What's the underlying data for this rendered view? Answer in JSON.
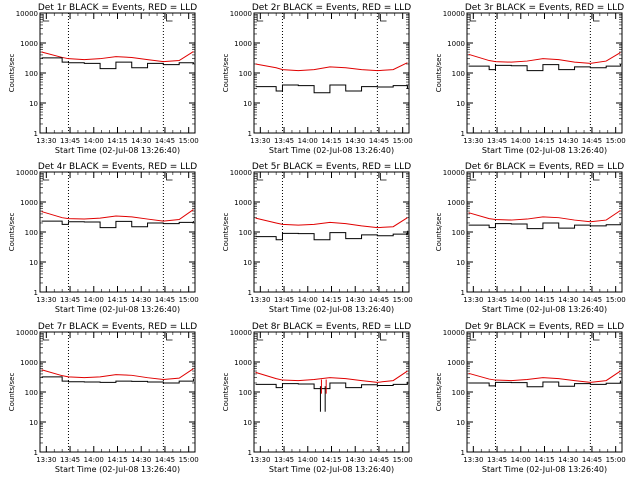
{
  "figure": {
    "xlabel": "Start Time (02-Jul-08 13:26:40)",
    "ylabel": "Counts/sec",
    "x_ticks": [
      "13:30",
      "13:45",
      "14:00",
      "14:15",
      "14:30",
      "14:45",
      "15:00"
    ],
    "colors": {
      "events": "#000000",
      "lld": "#e00000",
      "frame": "#000000"
    }
  },
  "chart_data": [
    {
      "type": "line",
      "title": "Det 1r BLACK = Events, RED = LLD",
      "xlabel": "Start Time (02-Jul-08 13:26:40)",
      "ylabel": "Counts/sec",
      "x_range": [
        "13:26",
        "15:04"
      ],
      "y_log": true,
      "ylim": [
        1,
        10000
      ],
      "y_ticks": [
        "1",
        "10",
        "100",
        "1000",
        "10000"
      ],
      "x": [
        "13:27",
        "13:40",
        "13:44",
        "13:54",
        "14:04",
        "14:14",
        "14:24",
        "14:34",
        "14:44",
        "14:54",
        "15:03"
      ],
      "series": [
        {
          "values": [
            500,
            330,
            300,
            280,
            300,
            350,
            330,
            280,
            240,
            260,
            520
          ]
        },
        {
          "values": [
            320,
            230,
            220,
            210,
            140,
            230,
            150,
            210,
            190,
            220,
            200
          ]
        }
      ],
      "vlines": [
        "13:44",
        "14:44"
      ],
      "marks": [
        "13:28",
        "14:46"
      ]
    },
    {
      "type": "line",
      "title": "Det 2r BLACK = Events, RED = LLD",
      "xlabel": "Start Time (02-Jul-08 13:26:40)",
      "ylabel": "Counts/sec",
      "x_range": [
        "13:26",
        "15:04"
      ],
      "y_log": true,
      "ylim": [
        1,
        10000
      ],
      "y_ticks": [
        "1",
        "10",
        "100",
        "1000",
        "10000"
      ],
      "x": [
        "13:27",
        "13:40",
        "13:44",
        "13:54",
        "14:04",
        "14:14",
        "14:24",
        "14:34",
        "14:44",
        "14:54",
        "15:03"
      ],
      "series": [
        {
          "values": [
            200,
            150,
            130,
            120,
            130,
            160,
            150,
            130,
            120,
            130,
            220
          ]
        },
        {
          "values": [
            35,
            25,
            40,
            38,
            22,
            40,
            25,
            35,
            34,
            38,
            30
          ]
        }
      ],
      "vlines": [
        "13:44",
        "14:44"
      ],
      "marks": [
        "13:28",
        "14:46"
      ]
    },
    {
      "type": "line",
      "title": "Det 3r BLACK = Events, RED = LLD",
      "xlabel": "Start Time (02-Jul-08 13:26:40)",
      "ylabel": "Counts/sec",
      "x_range": [
        "13:26",
        "15:04"
      ],
      "y_log": true,
      "ylim": [
        1,
        10000
      ],
      "y_ticks": [
        "1",
        "10",
        "100",
        "1000",
        "10000"
      ],
      "x": [
        "13:27",
        "13:40",
        "13:44",
        "13:54",
        "14:04",
        "14:14",
        "14:24",
        "14:34",
        "14:44",
        "14:54",
        "15:03"
      ],
      "series": [
        {
          "values": [
            420,
            260,
            240,
            230,
            250,
            300,
            280,
            230,
            210,
            250,
            480
          ]
        },
        {
          "values": [
            170,
            130,
            180,
            175,
            120,
            190,
            130,
            160,
            150,
            170,
            200
          ]
        }
      ],
      "vlines": [
        "13:44",
        "14:44"
      ],
      "marks": [
        "13:28",
        "14:46"
      ]
    },
    {
      "type": "line",
      "title": "Det 4r BLACK = Events, RED = LLD",
      "xlabel": "Start Time (02-Jul-08 13:26:40)",
      "ylabel": "Counts/sec",
      "x_range": [
        "13:26",
        "15:04"
      ],
      "y_log": true,
      "ylim": [
        1,
        10000
      ],
      "y_ticks": [
        "1",
        "10",
        "100",
        "1000",
        "10000"
      ],
      "x": [
        "13:27",
        "13:40",
        "13:44",
        "13:54",
        "14:04",
        "14:14",
        "14:24",
        "14:34",
        "14:44",
        "14:54",
        "15:03"
      ],
      "series": [
        {
          "values": [
            480,
            300,
            280,
            270,
            290,
            340,
            320,
            270,
            230,
            260,
            560
          ]
        },
        {
          "values": [
            230,
            180,
            220,
            215,
            140,
            225,
            150,
            200,
            190,
            210,
            230
          ]
        }
      ],
      "vlines": [
        "13:44",
        "14:44"
      ],
      "marks": [
        "13:28",
        "14:46"
      ]
    },
    {
      "type": "line",
      "title": "Det 5r BLACK = Events, RED = LLD",
      "xlabel": "Start Time (02-Jul-08 13:26:40)",
      "ylabel": "Counts/sec",
      "x_range": [
        "13:26",
        "15:04"
      ],
      "y_log": true,
      "ylim": [
        1,
        10000
      ],
      "y_ticks": [
        "1",
        "10",
        "100",
        "1000",
        "10000"
      ],
      "x": [
        "13:27",
        "13:40",
        "13:44",
        "13:54",
        "14:04",
        "14:14",
        "14:24",
        "14:34",
        "14:44",
        "14:54",
        "15:03"
      ],
      "series": [
        {
          "values": [
            290,
            200,
            180,
            170,
            180,
            210,
            190,
            160,
            140,
            150,
            300
          ]
        },
        {
          "values": [
            70,
            55,
            90,
            88,
            55,
            95,
            60,
            80,
            75,
            85,
            110
          ]
        }
      ],
      "vlines": [
        "13:44",
        "14:44"
      ],
      "marks": [
        "13:28",
        "14:46"
      ]
    },
    {
      "type": "line",
      "title": "Det 6r BLACK = Events, RED = LLD",
      "xlabel": "Start Time (02-Jul-08 13:26:40)",
      "ylabel": "Counts/sec",
      "x_range": [
        "13:26",
        "15:04"
      ],
      "y_log": true,
      "ylim": [
        1,
        10000
      ],
      "y_ticks": [
        "1",
        "10",
        "100",
        "1000",
        "10000"
      ],
      "x": [
        "13:27",
        "13:40",
        "13:44",
        "13:54",
        "14:04",
        "14:14",
        "14:24",
        "14:34",
        "14:44",
        "14:54",
        "15:03"
      ],
      "series": [
        {
          "values": [
            440,
            280,
            260,
            250,
            270,
            320,
            300,
            250,
            220,
            250,
            520
          ]
        },
        {
          "values": [
            170,
            140,
            190,
            185,
            130,
            200,
            135,
            170,
            160,
            175,
            190
          ]
        }
      ],
      "vlines": [
        "13:44",
        "14:44"
      ],
      "marks": [
        "13:28",
        "14:46"
      ]
    },
    {
      "type": "line",
      "title": "Det 7r BLACK = Events, RED = LLD",
      "xlabel": "Start Time (02-Jul-08 13:26:40)",
      "ylabel": "Counts/sec",
      "x_range": [
        "13:26",
        "15:04"
      ],
      "y_log": true,
      "ylim": [
        1,
        10000
      ],
      "y_ticks": [
        "1",
        "10",
        "100",
        "1000",
        "10000"
      ],
      "x": [
        "13:27",
        "13:40",
        "13:44",
        "13:54",
        "14:04",
        "14:14",
        "14:24",
        "14:34",
        "14:44",
        "14:54",
        "15:03"
      ],
      "series": [
        {
          "values": [
            550,
            350,
            320,
            300,
            320,
            380,
            360,
            300,
            260,
            290,
            600
          ]
        },
        {
          "values": [
            320,
            230,
            220,
            215,
            210,
            230,
            225,
            215,
            200,
            230,
            280
          ]
        }
      ],
      "vlines": [
        "13:44",
        "14:44"
      ],
      "marks": [
        "13:28",
        "14:46"
      ]
    },
    {
      "type": "line",
      "title": "Det 8r BLACK = Events, RED = LLD",
      "xlabel": "Start Time (02-Jul-08 13:26:40)",
      "ylabel": "Counts/sec",
      "x_range": [
        "13:26",
        "15:04"
      ],
      "y_log": true,
      "ylim": [
        1,
        10000
      ],
      "y_ticks": [
        "1",
        "10",
        "100",
        "1000",
        "10000"
      ],
      "x": [
        "13:27",
        "13:40",
        "13:44",
        "13:54",
        "14:04",
        "14:14",
        "14:24",
        "14:34",
        "14:44",
        "14:54",
        "15:03"
      ],
      "series": [
        {
          "values": [
            450,
            280,
            250,
            240,
            260,
            300,
            280,
            240,
            210,
            240,
            500
          ]
        },
        {
          "values": [
            180,
            140,
            190,
            185,
            130,
            200,
            140,
            175,
            165,
            180,
            220
          ]
        }
      ],
      "vlines": [
        "13:44",
        "14:44"
      ],
      "marks": [
        "13:28",
        "14:46"
      ],
      "dips": [
        {
          "x": "14:08",
          "value": 22
        },
        {
          "x": "14:11",
          "value": 22
        }
      ]
    },
    {
      "type": "line",
      "title": "Det 9r BLACK = Events, RED = LLD",
      "xlabel": "Start Time (02-Jul-08 13:26:40)",
      "ylabel": "Counts/sec",
      "x_range": [
        "13:26",
        "15:04"
      ],
      "y_log": true,
      "ylim": [
        1,
        10000
      ],
      "y_ticks": [
        "1",
        "10",
        "100",
        "1000",
        "10000"
      ],
      "x": [
        "13:27",
        "13:40",
        "13:44",
        "13:54",
        "14:04",
        "14:14",
        "14:24",
        "14:34",
        "14:44",
        "14:54",
        "15:03"
      ],
      "series": [
        {
          "values": [
            420,
            270,
            250,
            240,
            260,
            300,
            280,
            240,
            210,
            240,
            500
          ]
        },
        {
          "values": [
            200,
            160,
            210,
            205,
            150,
            215,
            155,
            190,
            180,
            195,
            240
          ]
        }
      ],
      "vlines": [
        "13:44",
        "14:44"
      ],
      "marks": [
        "13:28",
        "14:46"
      ]
    }
  ]
}
